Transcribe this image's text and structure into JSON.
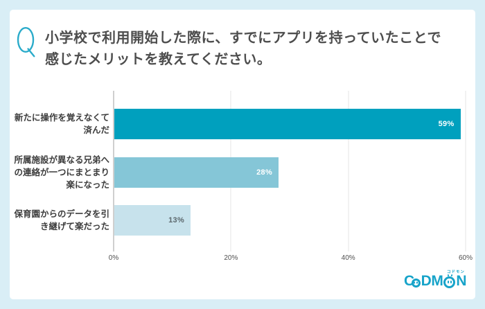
{
  "question": {
    "q_mark": "Q",
    "title_line1": "小学校で利用開始した際に、すでにアプリを持っていたことで",
    "title_line2": "感じたメリットを教えてください。"
  },
  "chart_data": {
    "type": "bar",
    "orientation": "horizontal",
    "title": "",
    "xlabel": "",
    "ylabel": "",
    "categories": [
      "新たに操作を覚えなくて済んだ",
      "所属施設が異なる兄弟への連絡が一つにまとまり楽になった",
      "保育園からのデータを引き継げて楽だった"
    ],
    "category_lines": [
      [
        "新たに操作を覚えなくて",
        "済んだ"
      ],
      [
        "所属施設が異なる兄弟へ",
        "の連絡が一つにまとまり",
        "楽になった"
      ],
      [
        "保育園からのデータを引",
        "き継げて楽だった"
      ]
    ],
    "values": [
      59,
      28,
      13
    ],
    "value_labels": [
      "59%",
      "28%",
      "13%"
    ],
    "bar_colors": [
      "#00a0be",
      "#85c6d7",
      "#c7e2ec"
    ],
    "value_label_colors": [
      "#ffffff",
      "#ffffff",
      "#5c686d"
    ],
    "xlim": [
      0,
      60
    ],
    "x_ticks": [
      "0%",
      "20%",
      "40%",
      "60%"
    ],
    "x_tick_values": [
      0,
      20,
      40,
      60
    ],
    "grid": true,
    "legend": false
  },
  "branding": {
    "logo_text": "CODMON",
    "logo_parts": {
      "c": "C",
      "dm": "DM",
      "n": "N"
    },
    "logo_kana": "コドモン"
  },
  "colors": {
    "page_background": "#d9eef6",
    "card_background": "#ffffff",
    "accent_cyan": "#22a8c9",
    "logo_cyan": "#17a3c9",
    "title_text": "#4d4d4d",
    "label_text": "#3d3d3d",
    "gridline": "#e4e4e4",
    "axis_line": "#9f9f9f"
  }
}
